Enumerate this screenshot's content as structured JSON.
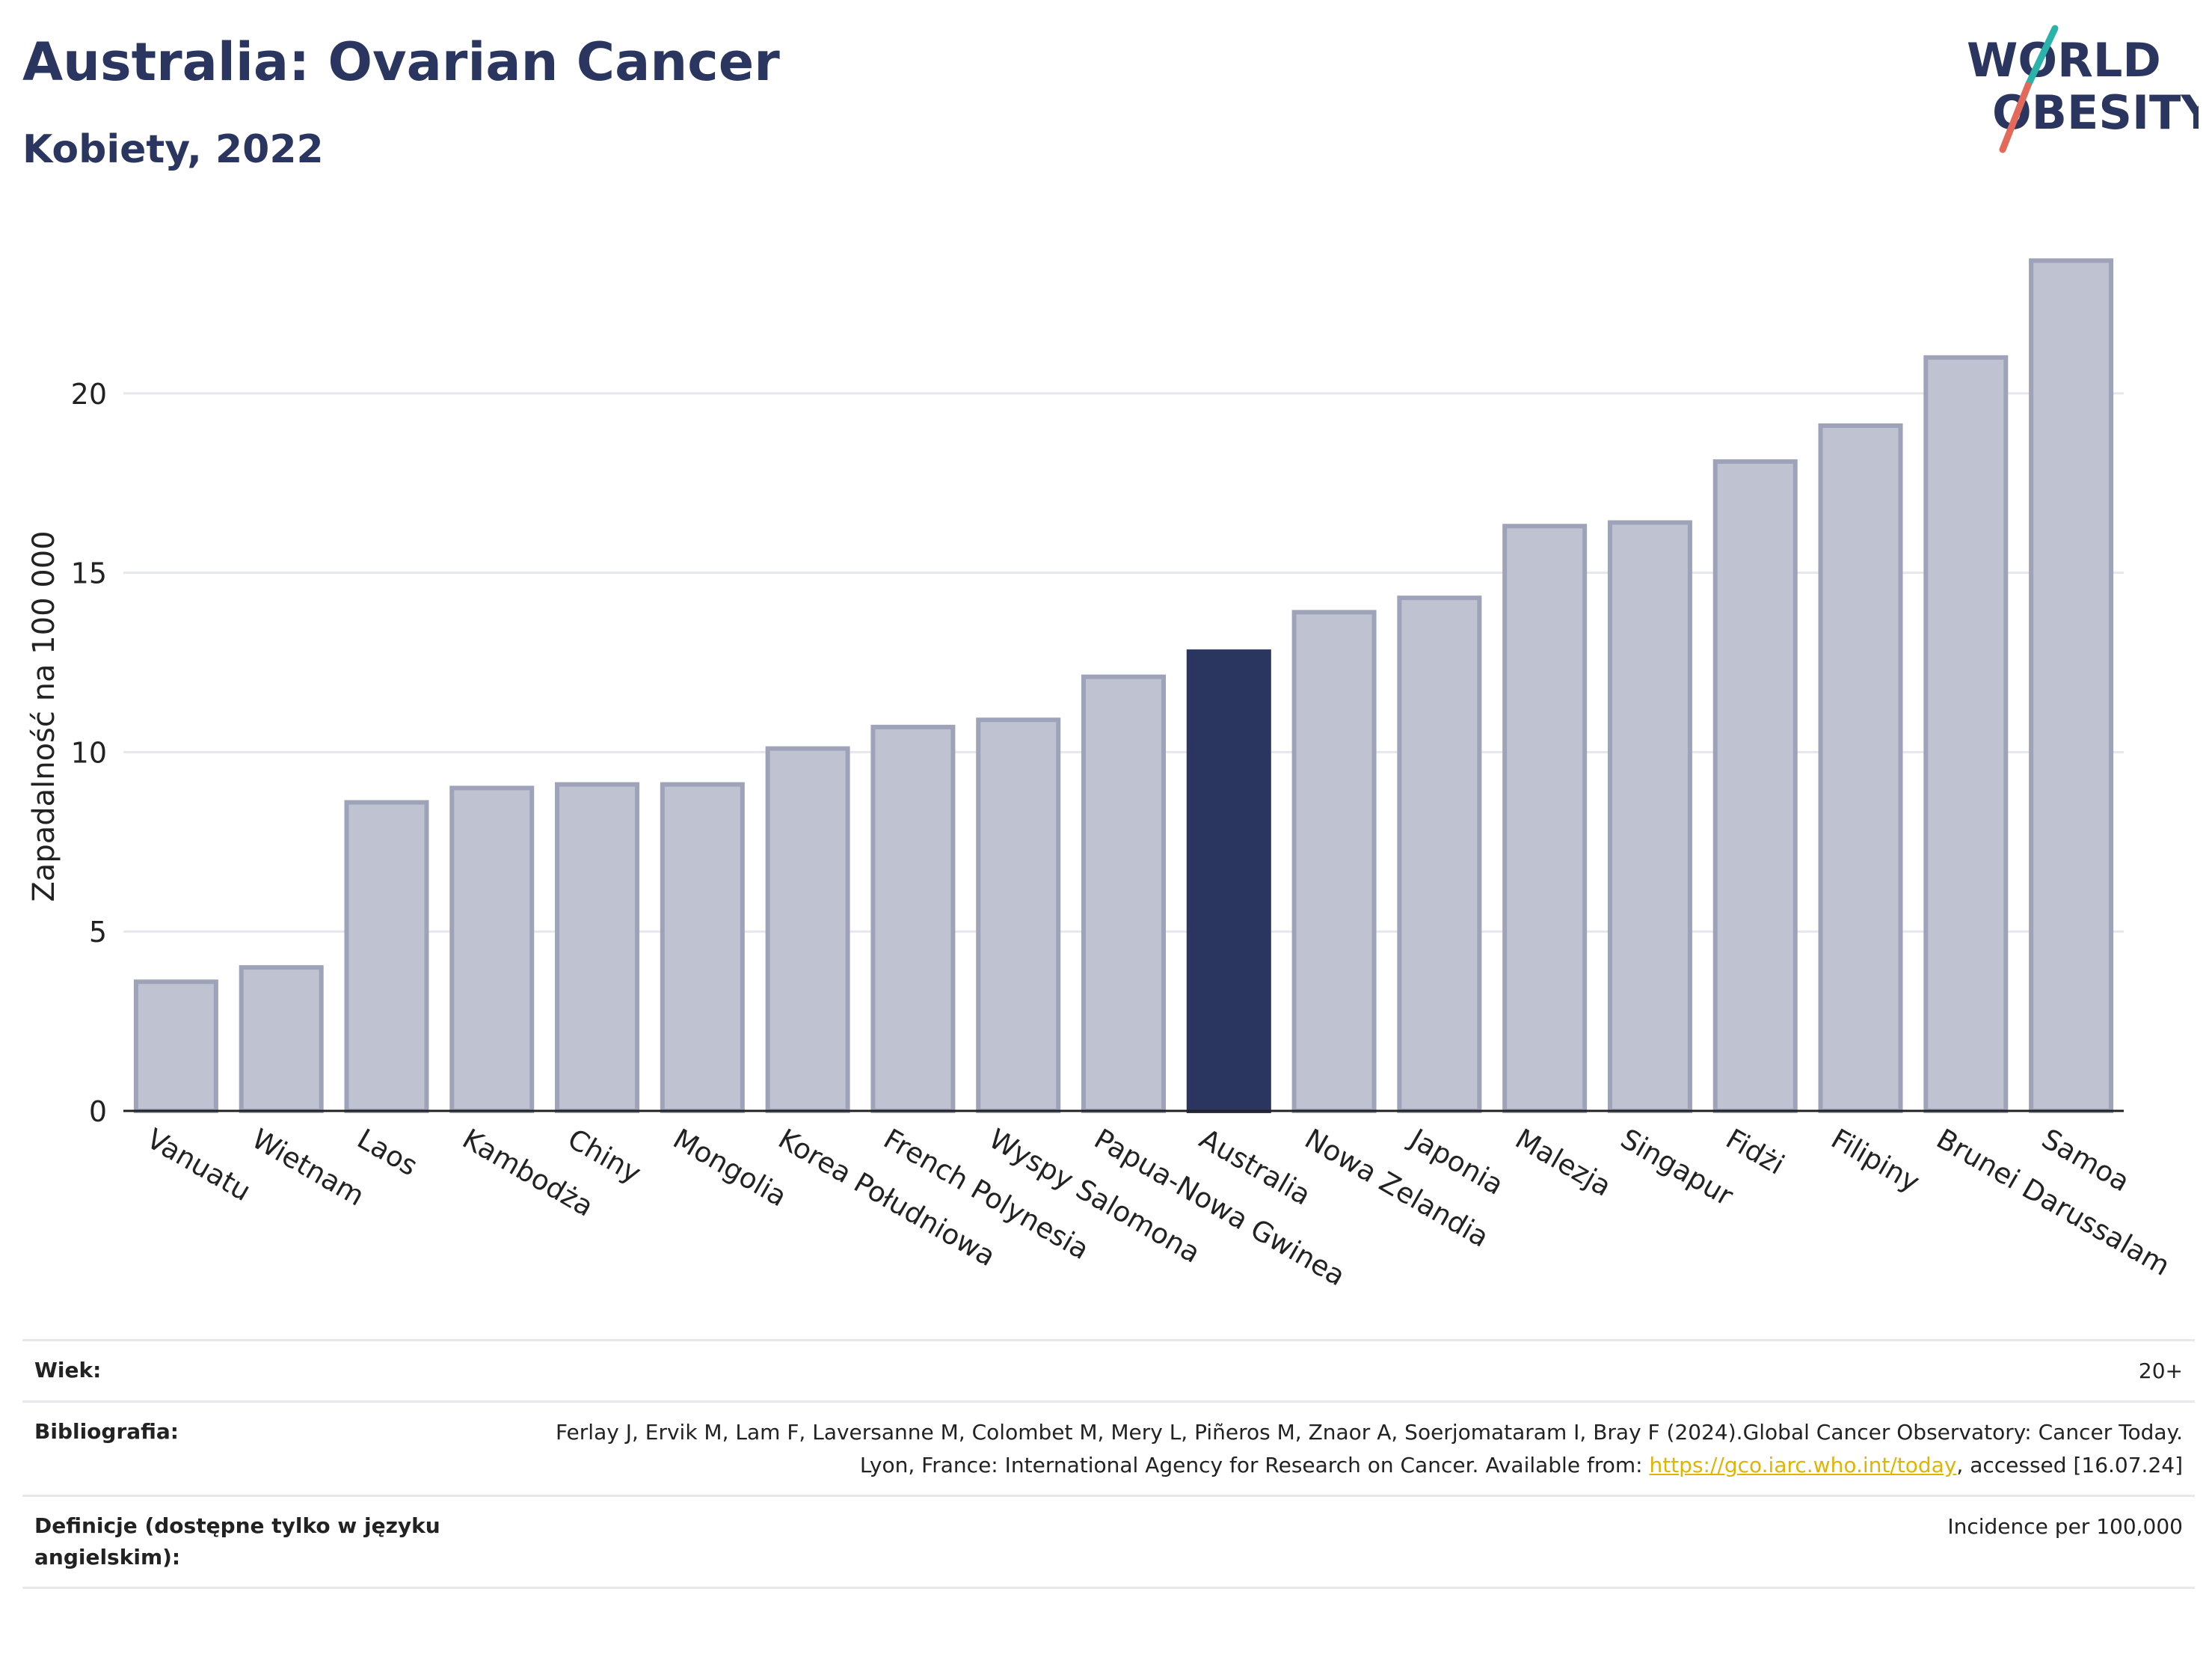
{
  "header": {
    "title": "Australia: Ovarian Cancer",
    "subtitle": "Kobiety, 2022"
  },
  "logo": {
    "line1": "WORLD",
    "line2": "OBESITY"
  },
  "colors": {
    "highlight": "#2a3560",
    "bar": "#bfc2d0",
    "bar_border": "#9ea3ba",
    "text": "#2a3560"
  },
  "chart_data": {
    "type": "bar",
    "categories": [
      "Vanuatu",
      "Wietnam",
      "Laos",
      "Kambodża",
      "Chiny",
      "Mongolia",
      "Korea Południowa",
      "French Polynesia",
      "Wyspy Salomona",
      "Papua-Nowa Gwinea",
      "Australia",
      "Nowa Zelandia",
      "Japonia",
      "Malezja",
      "Singapur",
      "Fidżi",
      "Filipiny",
      "Brunei Darussalam",
      "Samoa"
    ],
    "values": [
      3.6,
      4.0,
      8.6,
      9.0,
      9.1,
      9.1,
      10.1,
      10.7,
      10.9,
      12.1,
      12.8,
      13.9,
      14.3,
      16.3,
      16.4,
      18.1,
      19.1,
      21.0,
      23.7
    ],
    "highlight": "Australia",
    "ylabel": "Zapadalność na 100 000",
    "xlabel": "",
    "yticks": [
      0,
      5,
      10,
      15,
      20
    ],
    "ylim": [
      0,
      24.5
    ],
    "grid": true
  },
  "footer": {
    "age_label": "Wiek:",
    "age_value": "20+",
    "bib_label": "Bibliografia:",
    "bib_text_1": "Ferlay J, Ervik M, Lam F, Laversanne M, Colombet M, Mery L, Piñeros M, Znaor A, Soerjomataram I, Bray F (2024).Global Cancer Observatory: Cancer Today. Lyon, France: International Agency for Research on Cancer. Available from: ",
    "bib_link": "https://gco.iarc.who.int/today",
    "bib_text_2": ", accessed [16.07.24]",
    "def_label": "Definicje (dostępne tylko w języku angielskim):",
    "def_value": "Incidence per 100,000"
  }
}
